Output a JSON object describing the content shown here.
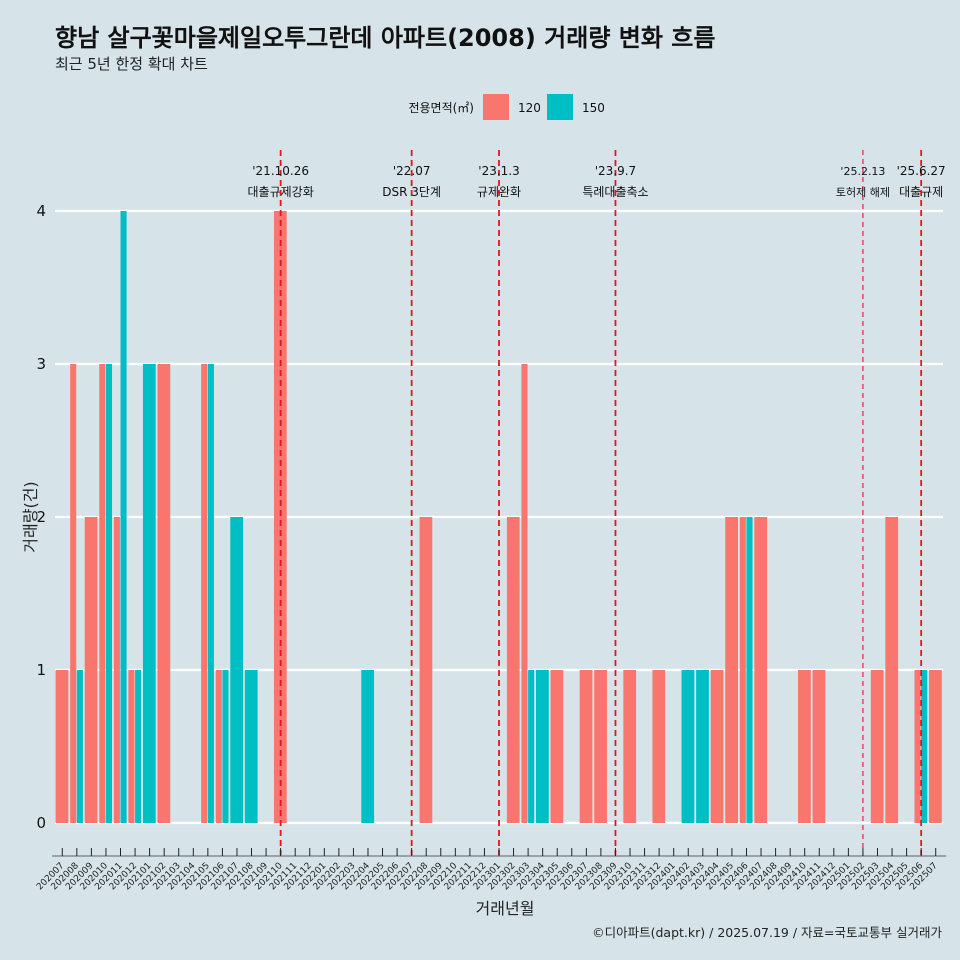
{
  "chart_data": {
    "type": "bar",
    "title": "향남 살구꽃마을제일오투그란데 아파트(2008) 거래량 변화 흐름",
    "subtitle": "최근 5년 한정 확대 차트",
    "xlabel": "거래년월",
    "ylabel": "거래량(건)",
    "ylim": [
      -0.2,
      4.4
    ],
    "yticks": [
      0,
      1,
      2,
      3,
      4
    ],
    "grid": true,
    "legend": {
      "title": "전용면적(㎡)",
      "placement": "top",
      "entries": [
        {
          "name": "120",
          "color": "#f8766d"
        },
        {
          "name": "150",
          "color": "#00bfc4"
        }
      ]
    },
    "categories": [
      "202007",
      "202008",
      "202009",
      "202010",
      "202011",
      "202012",
      "202101",
      "202102",
      "202103",
      "202104",
      "202105",
      "202106",
      "202107",
      "202108",
      "202109",
      "202110",
      "202111",
      "202112",
      "202201",
      "202202",
      "202203",
      "202204",
      "202205",
      "202206",
      "202207",
      "202208",
      "202209",
      "202210",
      "202211",
      "202212",
      "202301",
      "202302",
      "202303",
      "202304",
      "202305",
      "202306",
      "202307",
      "202308",
      "202309",
      "202310",
      "202311",
      "202312",
      "202401",
      "202402",
      "202403",
      "202404",
      "202405",
      "202406",
      "202407",
      "202408",
      "202409",
      "202410",
      "202411",
      "202412",
      "202501",
      "202502",
      "202503",
      "202504",
      "202505",
      "202506",
      "202507"
    ],
    "series": [
      {
        "name": "120",
        "color": "#f8766d",
        "values": [
          1,
          3,
          2,
          3,
          2,
          1,
          0,
          3,
          0,
          0,
          3,
          1,
          0,
          0,
          0,
          4,
          0,
          0,
          0,
          0,
          0,
          0,
          0,
          0,
          0,
          2,
          0,
          0,
          0,
          0,
          0,
          2,
          3,
          0,
          1,
          0,
          1,
          1,
          0,
          1,
          0,
          1,
          0,
          0,
          0,
          1,
          2,
          2,
          2,
          0,
          0,
          1,
          1,
          0,
          0,
          0,
          1,
          2,
          0,
          1,
          1
        ]
      },
      {
        "name": "150",
        "color": "#00bfc4",
        "values": [
          0,
          1,
          0,
          3,
          4,
          1,
          3,
          0,
          0,
          0,
          3,
          1,
          2,
          1,
          0,
          0,
          0,
          0,
          0,
          0,
          0,
          1,
          0,
          0,
          0,
          0,
          0,
          0,
          0,
          0,
          0,
          0,
          1,
          1,
          0,
          0,
          0,
          0,
          0,
          0,
          0,
          0,
          0,
          1,
          1,
          0,
          0,
          2,
          0,
          0,
          0,
          0,
          0,
          0,
          0,
          0,
          0,
          0,
          0,
          1,
          0
        ]
      }
    ],
    "annotations": [
      {
        "date_line": "202110",
        "label1": "'21.10.26",
        "label2": "대출규제강화",
        "style": "dashed"
      },
      {
        "date_line": "202207",
        "label1": "'22.07",
        "label2": "DSR 3단계",
        "style": "dashed"
      },
      {
        "date_line": "202301",
        "label1": "'23.1.3",
        "label2": "규제완화",
        "style": "dashed"
      },
      {
        "date_line": "202309",
        "label1": "'23.9.7",
        "label2": "특례대출축소",
        "style": "dashed"
      },
      {
        "date_line": "202502",
        "label1": "'25.2.13",
        "label2": "토허제 해제",
        "style": "dashed-thin"
      },
      {
        "date_line": "202506",
        "label1": "'25.6.27",
        "label2": "대출규제",
        "style": "dashed"
      }
    ]
  },
  "caption": "©디아파트(dapt.kr) / 2025.07.19 / 자료=국토교통부 실거래가"
}
